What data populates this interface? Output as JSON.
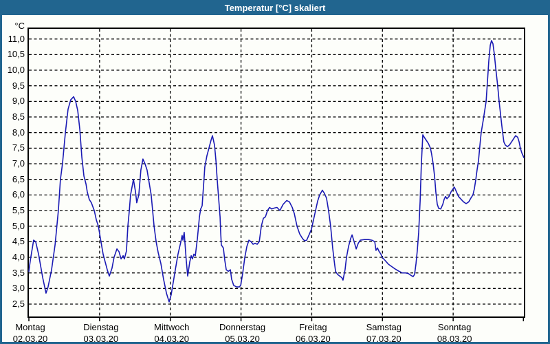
{
  "window": {
    "title": "Temperatur [°C] skaliert",
    "title_bar_color": "#21658f",
    "background_color": "#fdfefa"
  },
  "chart_data": {
    "type": "line",
    "title": "Temperatur [°C] skaliert",
    "xlabel": "",
    "ylabel": "°C",
    "ylim": [
      2.5,
      11.0
    ],
    "y_tick_step": 0.5,
    "grid": "dashed",
    "legend": "none",
    "line_color": "#1a1ab4",
    "grid_color": "#000000",
    "y_ticks": [
      {
        "value": 11.0,
        "label": "11,0"
      },
      {
        "value": 10.5,
        "label": "10,5"
      },
      {
        "value": 10.0,
        "label": "10,0"
      },
      {
        "value": 9.5,
        "label": "9,5"
      },
      {
        "value": 9.0,
        "label": "9,0"
      },
      {
        "value": 8.5,
        "label": "8,5"
      },
      {
        "value": 8.0,
        "label": "8,0"
      },
      {
        "value": 7.5,
        "label": "7,5"
      },
      {
        "value": 7.0,
        "label": "7,0"
      },
      {
        "value": 6.5,
        "label": "6,5"
      },
      {
        "value": 6.0,
        "label": "6,0"
      },
      {
        "value": 5.5,
        "label": "5,5"
      },
      {
        "value": 5.0,
        "label": "5,0"
      },
      {
        "value": 4.5,
        "label": "4,5"
      },
      {
        "value": 4.0,
        "label": "4,0"
      },
      {
        "value": 3.5,
        "label": "3,5"
      },
      {
        "value": 3.0,
        "label": "3,0"
      },
      {
        "value": 2.5,
        "label": "2,5"
      }
    ],
    "x_days": [
      {
        "name": "Montag",
        "date": "02.03.20"
      },
      {
        "name": "Dienstag",
        "date": "03.03.20"
      },
      {
        "name": "Mittwoch",
        "date": "04.03.20"
      },
      {
        "name": "Donnerstag",
        "date": "05.03.20"
      },
      {
        "name": "Freitag",
        "date": "06.03.20"
      },
      {
        "name": "Samstag",
        "date": "07.03.20"
      },
      {
        "name": "Sonntag",
        "date": "08.03.20"
      }
    ],
    "x_range_hours": [
      0,
      168
    ],
    "series": [
      {
        "name": "Temperatur",
        "unit": "°C",
        "points": [
          [
            0,
            3.55
          ],
          [
            0.5,
            3.9
          ],
          [
            1.6,
            4.55
          ],
          [
            2.3,
            4.5
          ],
          [
            3.3,
            4.1
          ],
          [
            4.7,
            3.35
          ],
          [
            5.8,
            2.85
          ],
          [
            6.5,
            3.05
          ],
          [
            7.7,
            3.6
          ],
          [
            8.9,
            4.4
          ],
          [
            10,
            5.5
          ],
          [
            10.7,
            6.5
          ],
          [
            11.4,
            7
          ],
          [
            12.4,
            8
          ],
          [
            13.3,
            8.75
          ],
          [
            14.2,
            9.05
          ],
          [
            15.2,
            9.15
          ],
          [
            15.9,
            9
          ],
          [
            16.6,
            8.7
          ],
          [
            17.3,
            8.1
          ],
          [
            18,
            7.2
          ],
          [
            18.7,
            6.6
          ],
          [
            19.4,
            6.35
          ],
          [
            19.8,
            6.1
          ],
          [
            20.5,
            5.85
          ],
          [
            21.2,
            5.75
          ],
          [
            22.2,
            5.5
          ],
          [
            22.9,
            5.2
          ],
          [
            23.6,
            5
          ],
          [
            24.3,
            4.6
          ],
          [
            25.2,
            4.1
          ],
          [
            25.9,
            3.85
          ],
          [
            26.6,
            3.6
          ],
          [
            27.3,
            3.4
          ],
          [
            28.2,
            3.65
          ],
          [
            28.9,
            4
          ],
          [
            29.9,
            4.27
          ],
          [
            30.6,
            4.18
          ],
          [
            31.3,
            3.95
          ],
          [
            32,
            4.05
          ],
          [
            32.4,
            3.95
          ],
          [
            33.1,
            4.2
          ],
          [
            33.6,
            5
          ],
          [
            34.1,
            5.5
          ],
          [
            34.5,
            6
          ],
          [
            35.5,
            6.5
          ],
          [
            36.2,
            6.1
          ],
          [
            36.6,
            5.75
          ],
          [
            37.3,
            6
          ],
          [
            38,
            6.8
          ],
          [
            38.7,
            7.15
          ],
          [
            39.4,
            7
          ],
          [
            40.1,
            6.8
          ],
          [
            40.8,
            6.4
          ],
          [
            41.5,
            6
          ],
          [
            42,
            5.5
          ],
          [
            42.5,
            5
          ],
          [
            43.2,
            4.5
          ],
          [
            43.9,
            4.15
          ],
          [
            44.8,
            3.8
          ],
          [
            45.7,
            3.3
          ],
          [
            46.7,
            2.85
          ],
          [
            47.6,
            2.57
          ],
          [
            48.3,
            2.8
          ],
          [
            49,
            3.2
          ],
          [
            49.7,
            3.6
          ],
          [
            50.6,
            4.1
          ],
          [
            51.6,
            4.5
          ],
          [
            52,
            4.7
          ],
          [
            52.3,
            4.55
          ],
          [
            52.7,
            4.8
          ],
          [
            53.4,
            3.9
          ],
          [
            53.9,
            3.4
          ],
          [
            54.6,
            3.85
          ],
          [
            55.1,
            4.05
          ],
          [
            55.5,
            3.95
          ],
          [
            56,
            4.1
          ],
          [
            56.5,
            4.05
          ],
          [
            57.2,
            4.6
          ],
          [
            57.9,
            5.3
          ],
          [
            58.3,
            5.55
          ],
          [
            58.8,
            5.65
          ],
          [
            59.3,
            6.3
          ],
          [
            59.7,
            6.9
          ],
          [
            60.4,
            7.25
          ],
          [
            61.1,
            7.5
          ],
          [
            61.8,
            7.75
          ],
          [
            62.3,
            7.9
          ],
          [
            63,
            7.6
          ],
          [
            63.5,
            7.1
          ],
          [
            63.9,
            6.5
          ],
          [
            64.4,
            5.9
          ],
          [
            64.9,
            5.3
          ],
          [
            65.1,
            4.8
          ],
          [
            65.3,
            4.4
          ],
          [
            66,
            4.3
          ],
          [
            66.5,
            3.9
          ],
          [
            67,
            3.6
          ],
          [
            67.7,
            3.55
          ],
          [
            68.4,
            3.6
          ],
          [
            68.8,
            3.3
          ],
          [
            69.5,
            3.1
          ],
          [
            70.5,
            3.05
          ],
          [
            71.4,
            3.05
          ],
          [
            71.9,
            3.1
          ],
          [
            72.6,
            3.5
          ],
          [
            73.3,
            4
          ],
          [
            74,
            4.35
          ],
          [
            74.7,
            4.55
          ],
          [
            75.4,
            4.5
          ],
          [
            76.1,
            4.42
          ],
          [
            76.8,
            4.45
          ],
          [
            77.5,
            4.42
          ],
          [
            78.2,
            4.5
          ],
          [
            78.9,
            5
          ],
          [
            79.6,
            5.25
          ],
          [
            80.3,
            5.3
          ],
          [
            81,
            5.5
          ],
          [
            81.7,
            5.6
          ],
          [
            82.4,
            5.55
          ],
          [
            83.3,
            5.58
          ],
          [
            84.2,
            5.6
          ],
          [
            85.2,
            5.5
          ],
          [
            86.3,
            5.7
          ],
          [
            87.5,
            5.82
          ],
          [
            88.4,
            5.78
          ],
          [
            89.4,
            5.6
          ],
          [
            90.1,
            5.4
          ],
          [
            91,
            5
          ],
          [
            91.9,
            4.75
          ],
          [
            92.9,
            4.6
          ],
          [
            93.6,
            4.53
          ],
          [
            94.3,
            4.55
          ],
          [
            95,
            4.7
          ],
          [
            95.9,
            4.9
          ],
          [
            96.6,
            5.2
          ],
          [
            97.3,
            5.5
          ],
          [
            98,
            5.8
          ],
          [
            98.7,
            6
          ],
          [
            99.6,
            6.15
          ],
          [
            100.3,
            6.05
          ],
          [
            101,
            5.9
          ],
          [
            101.7,
            5.5
          ],
          [
            102.4,
            5
          ],
          [
            103.1,
            4.3
          ],
          [
            103.6,
            3.9
          ],
          [
            104.1,
            3.55
          ],
          [
            104.8,
            3.45
          ],
          [
            105.5,
            3.4
          ],
          [
            106.2,
            3.35
          ],
          [
            106.6,
            3.27
          ],
          [
            107.3,
            3.6
          ],
          [
            107.8,
            4
          ],
          [
            108.5,
            4.35
          ],
          [
            109.2,
            4.6
          ],
          [
            109.7,
            4.72
          ],
          [
            110.4,
            4.5
          ],
          [
            111.1,
            4.27
          ],
          [
            111.8,
            4.45
          ],
          [
            112.5,
            4.55
          ],
          [
            113.9,
            4.57
          ],
          [
            115.3,
            4.57
          ],
          [
            116.4,
            4.55
          ],
          [
            117.4,
            4.5
          ],
          [
            117.8,
            4.22
          ],
          [
            118.3,
            4.3
          ],
          [
            118.8,
            4.2
          ],
          [
            119.5,
            4.1
          ],
          [
            119.9,
            4
          ],
          [
            120.9,
            3.9
          ],
          [
            122,
            3.78
          ],
          [
            123.2,
            3.7
          ],
          [
            124.4,
            3.62
          ],
          [
            125.5,
            3.56
          ],
          [
            126.7,
            3.5
          ],
          [
            127.9,
            3.5
          ],
          [
            128.8,
            3.48
          ],
          [
            129.7,
            3.42
          ],
          [
            130.4,
            3.38
          ],
          [
            130.9,
            3.45
          ],
          [
            131.4,
            3.8
          ],
          [
            131.8,
            4.2
          ],
          [
            132.3,
            4.8
          ],
          [
            132.8,
            5.8
          ],
          [
            133.2,
            7
          ],
          [
            133.7,
            7.93
          ],
          [
            134.2,
            7.85
          ],
          [
            134.9,
            7.75
          ],
          [
            135.6,
            7.65
          ],
          [
            136.3,
            7.5
          ],
          [
            136.7,
            7.3
          ],
          [
            137.2,
            7
          ],
          [
            137.7,
            6.6
          ],
          [
            138.1,
            6.1
          ],
          [
            138.6,
            5.7
          ],
          [
            139.1,
            5.57
          ],
          [
            139.8,
            5.55
          ],
          [
            140.5,
            5.7
          ],
          [
            140.9,
            5.85
          ],
          [
            141.4,
            5.95
          ],
          [
            141.9,
            5.88
          ],
          [
            142.6,
            5.95
          ],
          [
            143.3,
            6.1
          ],
          [
            144,
            6.2
          ],
          [
            144.4,
            6.25
          ],
          [
            145.1,
            6.1
          ],
          [
            145.8,
            5.95
          ],
          [
            146.5,
            5.88
          ],
          [
            147.5,
            5.78
          ],
          [
            148.4,
            5.72
          ],
          [
            149.3,
            5.78
          ],
          [
            150,
            5.9
          ],
          [
            150.7,
            6
          ],
          [
            151.2,
            6.2
          ],
          [
            151.7,
            6.5
          ],
          [
            152.1,
            6.8
          ],
          [
            152.6,
            7.1
          ],
          [
            153.1,
            7.6
          ],
          [
            153.5,
            8
          ],
          [
            154.2,
            8.4
          ],
          [
            154.7,
            8.7
          ],
          [
            155.2,
            9
          ],
          [
            155.6,
            9.6
          ],
          [
            156.1,
            10.3
          ],
          [
            156.6,
            10.8
          ],
          [
            157,
            10.95
          ],
          [
            157.5,
            10.85
          ],
          [
            158,
            10.5
          ],
          [
            158.4,
            10.1
          ],
          [
            159.1,
            9.5
          ],
          [
            159.6,
            9
          ],
          [
            160.3,
            8.4
          ],
          [
            160.8,
            8
          ],
          [
            161.2,
            7.7
          ],
          [
            161.7,
            7.6
          ],
          [
            162.4,
            7.55
          ],
          [
            163.1,
            7.6
          ],
          [
            163.8,
            7.7
          ],
          [
            164.5,
            7.8
          ],
          [
            165.2,
            7.9
          ],
          [
            165.9,
            7.85
          ],
          [
            166.4,
            7.7
          ],
          [
            166.8,
            7.5
          ],
          [
            167.3,
            7.35
          ],
          [
            168,
            7.2
          ]
        ]
      }
    ]
  }
}
